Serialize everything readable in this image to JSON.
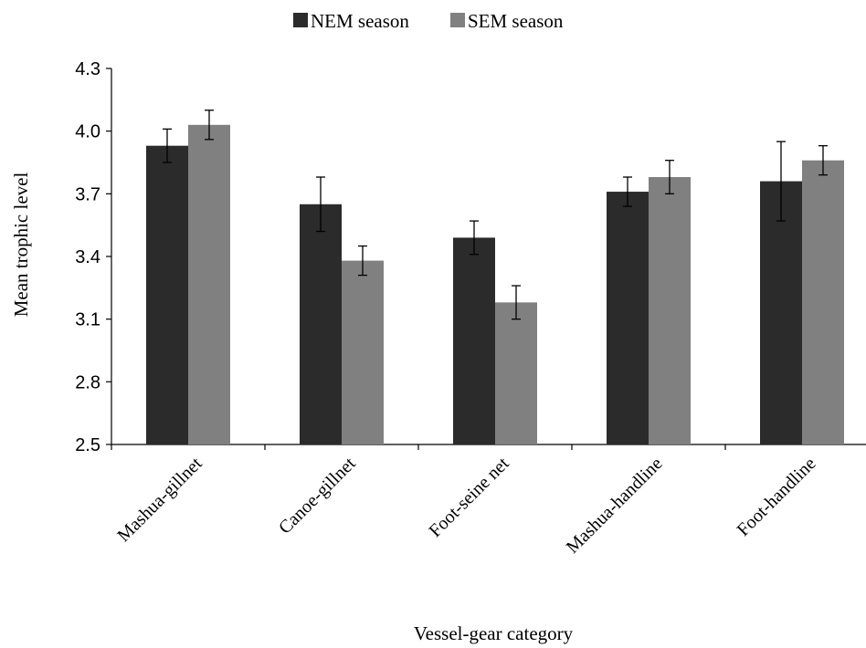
{
  "chart_data": {
    "type": "bar",
    "title": "",
    "xlabel": "Vessel-gear category",
    "ylabel": "Mean trophic level",
    "ylim": [
      2.5,
      4.3
    ],
    "yticks": [
      "2.5",
      "2.8",
      "3.1",
      "3.4",
      "3.7",
      "4.0",
      "4.3"
    ],
    "grid": false,
    "legend_position": "top-center",
    "categories": [
      "Mashua-gillnet",
      "Canoe-gillnet",
      "Foot-seine net",
      "Mashua-handline",
      "Foot-handline"
    ],
    "series": [
      {
        "name": "NEM season",
        "color": "#2b2b2b",
        "values": [
          3.93,
          3.65,
          3.49,
          3.71,
          3.76
        ],
        "errors": [
          0.08,
          0.13,
          0.08,
          0.07,
          0.19
        ]
      },
      {
        "name": "SEM season",
        "color": "#808080",
        "values": [
          4.03,
          3.38,
          3.18,
          3.78,
          3.86
        ],
        "errors": [
          0.07,
          0.07,
          0.08,
          0.08,
          0.07
        ]
      }
    ]
  }
}
